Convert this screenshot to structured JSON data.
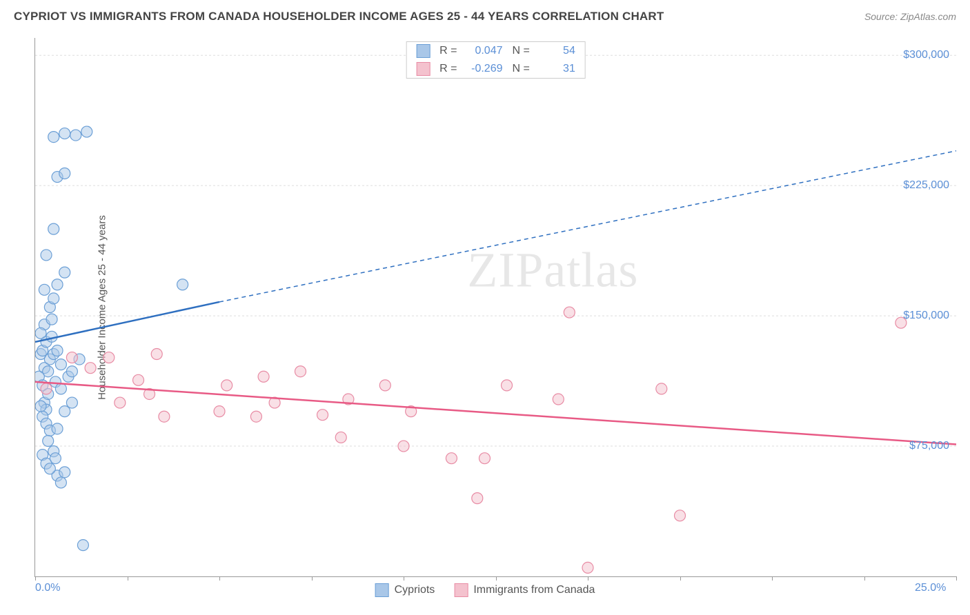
{
  "title": "CYPRIOT VS IMMIGRANTS FROM CANADA HOUSEHOLDER INCOME AGES 25 - 44 YEARS CORRELATION CHART",
  "source": "Source: ZipAtlas.com",
  "watermark_a": "ZIP",
  "watermark_b": "atlas",
  "chart": {
    "type": "scatter-correlation",
    "ylabel": "Householder Income Ages 25 - 44 years",
    "x_range": [
      0,
      25
    ],
    "y_range": [
      0,
      310000
    ],
    "x_ticks_minor": [
      0,
      2.5,
      5,
      7.5,
      10,
      12.5,
      15,
      17.5,
      20,
      22.5,
      25
    ],
    "x_tick_labels": [
      {
        "val": 0,
        "label": "0.0%",
        "align": "left"
      },
      {
        "val": 25,
        "label": "25.0%",
        "align": "right"
      }
    ],
    "y_gridlines": [
      75000,
      150000,
      225000,
      300000
    ],
    "y_tick_labels": [
      {
        "val": 75000,
        "label": "$75,000"
      },
      {
        "val": 150000,
        "label": "$150,000"
      },
      {
        "val": 225000,
        "label": "$225,000"
      },
      {
        "val": 300000,
        "label": "$300,000"
      }
    ],
    "marker_radius": 8,
    "marker_opacity": 0.5,
    "grid_color": "#dddddd",
    "axis_color": "#999999",
    "series": [
      {
        "name": "Cypriots",
        "color_fill": "#a9c7e8",
        "color_stroke": "#6b9fd6",
        "trend_color": "#2e6fc0",
        "R": "0.047",
        "N": "54",
        "trend": {
          "x1": 0,
          "y1": 135000,
          "x2_solid": 5,
          "y2_solid": 158000,
          "x2": 25,
          "y2": 245000
        },
        "points": [
          [
            0.15,
            128000
          ],
          [
            0.2,
            130000
          ],
          [
            0.25,
            120000
          ],
          [
            0.3,
            135000
          ],
          [
            0.35,
            118000
          ],
          [
            0.1,
            115000
          ],
          [
            0.2,
            110000
          ],
          [
            0.25,
            100000
          ],
          [
            0.3,
            96000
          ],
          [
            0.2,
            92000
          ],
          [
            0.4,
            125000
          ],
          [
            0.5,
            128000
          ],
          [
            0.6,
            130000
          ],
          [
            0.7,
            122000
          ],
          [
            0.3,
            88000
          ],
          [
            0.4,
            84000
          ],
          [
            0.35,
            78000
          ],
          [
            0.5,
            72000
          ],
          [
            0.6,
            58000
          ],
          [
            0.7,
            54000
          ],
          [
            0.8,
            60000
          ],
          [
            0.4,
            155000
          ],
          [
            0.5,
            160000
          ],
          [
            0.6,
            168000
          ],
          [
            0.8,
            175000
          ],
          [
            0.3,
            185000
          ],
          [
            0.5,
            200000
          ],
          [
            0.6,
            230000
          ],
          [
            0.8,
            232000
          ],
          [
            0.5,
            253000
          ],
          [
            0.8,
            255000
          ],
          [
            1.1,
            254000
          ],
          [
            1.4,
            256000
          ],
          [
            0.25,
            145000
          ],
          [
            0.45,
            148000
          ],
          [
            0.15,
            98000
          ],
          [
            0.35,
            105000
          ],
          [
            0.55,
            112000
          ],
          [
            0.7,
            108000
          ],
          [
            0.9,
            115000
          ],
          [
            1.0,
            118000
          ],
          [
            1.2,
            125000
          ],
          [
            0.2,
            70000
          ],
          [
            0.3,
            65000
          ],
          [
            0.4,
            62000
          ],
          [
            1.3,
            18000
          ],
          [
            0.6,
            85000
          ],
          [
            0.8,
            95000
          ],
          [
            1.0,
            100000
          ],
          [
            0.15,
            140000
          ],
          [
            0.45,
            138000
          ],
          [
            4.0,
            168000
          ],
          [
            0.55,
            68000
          ],
          [
            0.25,
            165000
          ]
        ]
      },
      {
        "name": "Immigrants from Canada",
        "color_fill": "#f4c2ce",
        "color_stroke": "#e88ba4",
        "trend_color": "#e85a85",
        "R": "-0.269",
        "N": "31",
        "trend": {
          "x1": 0,
          "y1": 112000,
          "x2_solid": 25,
          "y2_solid": 76000,
          "x2": 25,
          "y2": 76000
        },
        "points": [
          [
            0.3,
            108000
          ],
          [
            1.0,
            126000
          ],
          [
            1.5,
            120000
          ],
          [
            2.0,
            126000
          ],
          [
            2.3,
            100000
          ],
          [
            2.8,
            113000
          ],
          [
            3.1,
            105000
          ],
          [
            3.3,
            128000
          ],
          [
            3.5,
            92000
          ],
          [
            5.0,
            95000
          ],
          [
            5.2,
            110000
          ],
          [
            6.0,
            92000
          ],
          [
            6.2,
            115000
          ],
          [
            6.5,
            100000
          ],
          [
            7.2,
            118000
          ],
          [
            7.8,
            93000
          ],
          [
            8.3,
            80000
          ],
          [
            9.5,
            110000
          ],
          [
            10.0,
            75000
          ],
          [
            10.2,
            95000
          ],
          [
            11.3,
            68000
          ],
          [
            12.0,
            45000
          ],
          [
            12.2,
            68000
          ],
          [
            12.8,
            110000
          ],
          [
            14.2,
            102000
          ],
          [
            14.5,
            152000
          ],
          [
            15.0,
            5000
          ],
          [
            17.0,
            108000
          ],
          [
            17.5,
            35000
          ],
          [
            23.5,
            146000
          ],
          [
            8.5,
            102000
          ]
        ]
      }
    ],
    "legend_bottom": [
      {
        "label": "Cypriots",
        "fill": "#a9c7e8",
        "stroke": "#6b9fd6"
      },
      {
        "label": "Immigrants from Canada",
        "fill": "#f4c2ce",
        "stroke": "#e88ba4"
      }
    ]
  }
}
